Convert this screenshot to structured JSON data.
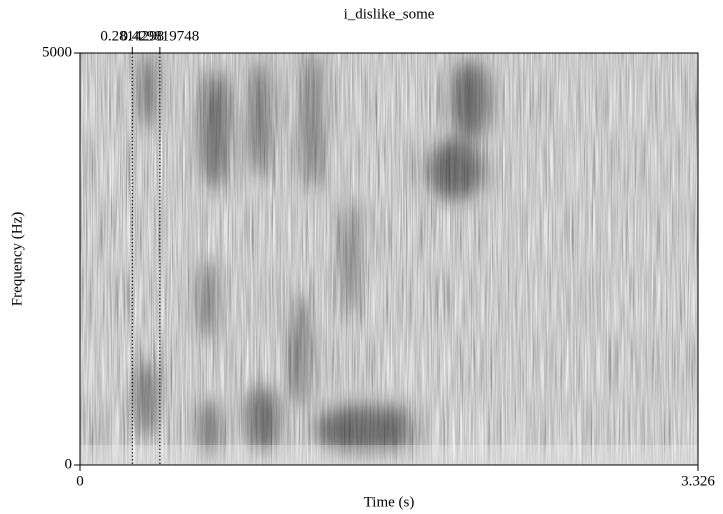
{
  "chart_data": {
    "type": "spectrogram",
    "title": "i_dislike_some",
    "xlabel": "Time (s)",
    "ylabel": "Frequency (Hz)",
    "xlim": [
      0,
      3.326
    ],
    "ylim": [
      0,
      5000
    ],
    "xticks": [
      0,
      3.326
    ],
    "yticks": [
      0,
      5000
    ],
    "markers": [
      0.2814298,
      0.429819748
    ]
  }
}
